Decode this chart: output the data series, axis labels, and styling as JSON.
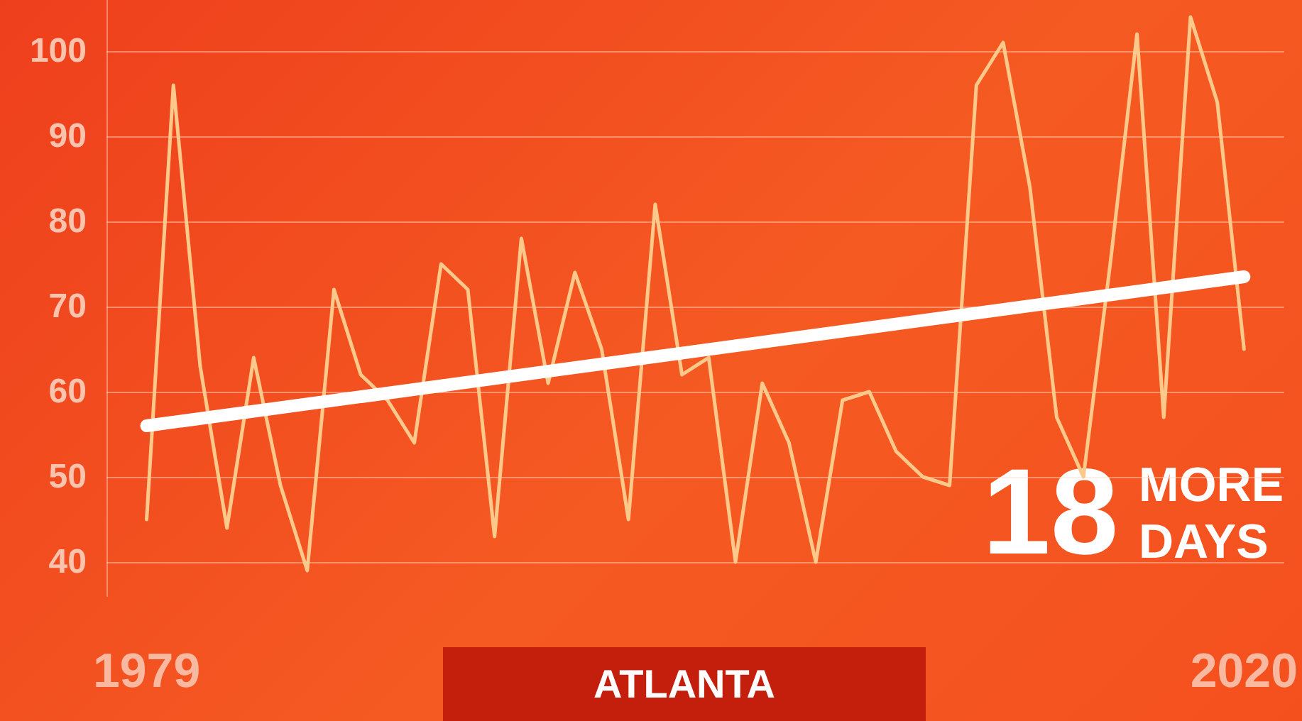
{
  "chart_data": {
    "type": "line",
    "title": "ATLANTA",
    "annotations": [
      "18 MORE DAYS"
    ],
    "xlim": [
      1977.5,
      2021.5
    ],
    "xticks": [
      1979,
      2020
    ],
    "ylim": [
      36,
      106
    ],
    "yticks": [
      40,
      50,
      60,
      70,
      80,
      90,
      100
    ],
    "grid": "y",
    "marker": "none",
    "line_style": "solid",
    "series": [
      {
        "color": "#fdc98a",
        "x": [
          1979,
          1980,
          1981,
          1982,
          1983,
          1984,
          1985,
          1986,
          1987,
          1988,
          1989,
          1990,
          1991,
          1992,
          1993,
          1994,
          1995,
          1996,
          1997,
          1998,
          1999,
          2000,
          2001,
          2002,
          2003,
          2004,
          2005,
          2006,
          2007,
          2008,
          2009,
          2010,
          2011,
          2012,
          2013,
          2014,
          2015,
          2016,
          2017,
          2018,
          2019,
          2020
        ],
        "values": [
          45,
          96,
          63,
          44,
          64,
          49,
          39,
          72,
          62,
          59,
          54,
          75,
          72,
          43,
          78,
          61,
          74,
          65,
          45,
          82,
          62,
          64,
          40,
          61,
          54,
          40,
          59,
          60,
          53,
          50,
          49,
          96,
          101,
          84,
          57,
          50,
          75,
          102,
          57,
          104,
          94,
          65
        ]
      },
      {
        "type": "line",
        "color": "#ffffff",
        "x": [
          1979,
          2020
        ],
        "values": [
          56,
          73.5
        ]
      }
    ]
  }
}
